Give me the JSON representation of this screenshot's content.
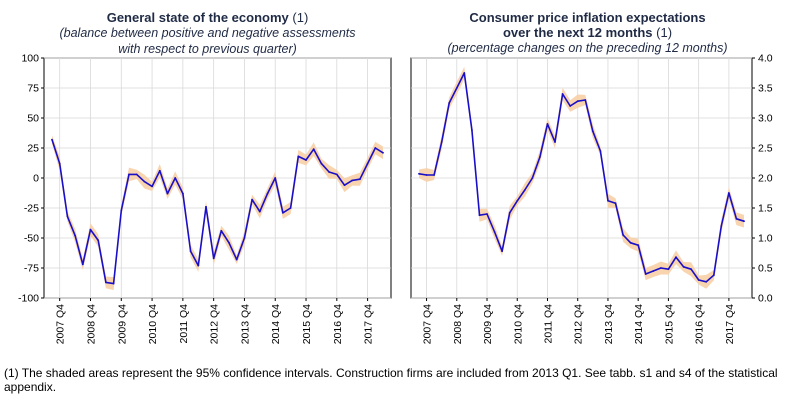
{
  "chart_data": [
    {
      "type": "line",
      "title": "General state of the economy",
      "title_note": "(1)",
      "subtitle": "(balance between positive and negative assessments with respect to previous quarter)",
      "subtitle_lines": [
        "(balance between positive and negative assessments",
        "with respect to previous quarter)"
      ],
      "ylim": [
        -100,
        100
      ],
      "yticks": [
        100,
        75,
        50,
        25,
        0,
        -25,
        -50,
        -75,
        -100
      ],
      "ytick_labels": [
        "100",
        "75",
        "50",
        "25",
        "0",
        "-25",
        "-50",
        "-75",
        "-100"
      ],
      "y_axis_side": "left",
      "xlabels": [
        "2007 Q4",
        "2008 Q4",
        "2009 Q4",
        "2010 Q4",
        "2011 Q4",
        "2012 Q4",
        "2013 Q4",
        "2014 Q4",
        "2015 Q4",
        "2016 Q4",
        "2017 Q4"
      ],
      "grid": true,
      "series": [
        {
          "name": "balance",
          "color": "#1a0fc8",
          "band_color": "#f7cfa6",
          "values": [
            32,
            12,
            -32,
            -48,
            -72,
            -43,
            -52,
            -87,
            -88,
            -27,
            3,
            3,
            -3,
            -7,
            6,
            -13,
            0,
            -13,
            -61,
            -73,
            -24,
            -67,
            -44,
            -54,
            -68,
            -50,
            -18,
            -28,
            -13,
            0,
            -29,
            -25,
            18,
            15,
            24,
            12,
            5,
            3,
            -6,
            -2,
            -1,
            12,
            25,
            21
          ]
        }
      ]
    },
    {
      "type": "line",
      "title": "Consumer price inflation expectations",
      "title_line2": "over the next 12 months",
      "title_note": "(1)",
      "subtitle": "(percentage changes on the preceding 12 months)",
      "ylim": [
        0,
        4
      ],
      "yticks": [
        4,
        3.5,
        3,
        2.5,
        2,
        1.5,
        1,
        0.5,
        0
      ],
      "ytick_labels": [
        "4.0",
        "3.5",
        "3.0",
        "2.5",
        "2.0",
        "1.5",
        "1.0",
        "0.5",
        "0.0"
      ],
      "y_axis_side": "right",
      "xlabels": [
        "2007 Q4",
        "2008 Q4",
        "2009 Q4",
        "2010 Q4",
        "2011 Q4",
        "2012 Q4",
        "2013 Q4",
        "2014 Q4",
        "2015 Q4",
        "2016 Q4",
        "2017 Q4"
      ],
      "grid": true,
      "series": [
        {
          "name": "expectations",
          "color": "#1a0fc8",
          "band_color": "#f7cfa6",
          "values": [
            2.07,
            2.05,
            2.05,
            2.6,
            3.25,
            3.5,
            3.75,
            2.8,
            1.38,
            1.4,
            1.1,
            0.78,
            1.42,
            1.62,
            1.8,
            2.0,
            2.35,
            2.9,
            2.6,
            3.4,
            3.2,
            3.28,
            3.3,
            2.78,
            2.45,
            1.62,
            1.58,
            1.05,
            0.92,
            0.88,
            0.4,
            0.45,
            0.5,
            0.48,
            0.68,
            0.52,
            0.48,
            0.3,
            0.27,
            0.38,
            1.2,
            1.75,
            1.32,
            1.28
          ]
        }
      ]
    }
  ],
  "footnote": "(1) The shaded areas represent the 95% confidence intervals. Construction firms are included from 2013 Q1. See tabb. s1 and s4 of the statistical appendix."
}
